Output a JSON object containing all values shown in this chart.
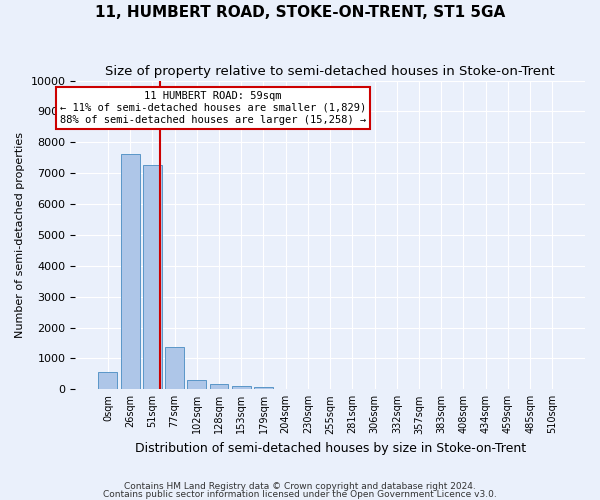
{
  "title": "11, HUMBERT ROAD, STOKE-ON-TRENT, ST1 5GA",
  "subtitle": "Size of property relative to semi-detached houses in Stoke-on-Trent",
  "xlabel": "Distribution of semi-detached houses by size in Stoke-on-Trent",
  "ylabel": "Number of semi-detached properties",
  "footer_line1": "Contains HM Land Registry data © Crown copyright and database right 2024.",
  "footer_line2": "Contains public sector information licensed under the Open Government Licence v3.0.",
  "bar_labels": [
    "0sqm",
    "26sqm",
    "51sqm",
    "77sqm",
    "102sqm",
    "128sqm",
    "153sqm",
    "179sqm",
    "204sqm",
    "230sqm",
    "255sqm",
    "281sqm",
    "306sqm",
    "332sqm",
    "357sqm",
    "383sqm",
    "408sqm",
    "434sqm",
    "459sqm",
    "485sqm",
    "510sqm"
  ],
  "bar_values": [
    560,
    7620,
    7270,
    1360,
    310,
    160,
    100,
    80,
    0,
    0,
    0,
    0,
    0,
    0,
    0,
    0,
    0,
    0,
    0,
    0,
    0
  ],
  "bar_color": "#aec6e8",
  "bar_edge_color": "#5a96c8",
  "ylim": [
    0,
    10000
  ],
  "yticks": [
    0,
    1000,
    2000,
    3000,
    4000,
    5000,
    6000,
    7000,
    8000,
    9000,
    10000
  ],
  "property_bin_index": 2,
  "annotation_title": "11 HUMBERT ROAD: 59sqm",
  "annotation_line1": "← 11% of semi-detached houses are smaller (1,829)",
  "annotation_line2": "88% of semi-detached houses are larger (15,258) →",
  "annotation_box_color": "#ffffff",
  "annotation_box_edge": "#cc0000",
  "vline_color": "#cc0000",
  "background_color": "#eaf0fb",
  "grid_color": "#ffffff",
  "title_fontsize": 11,
  "subtitle_fontsize": 9.5
}
